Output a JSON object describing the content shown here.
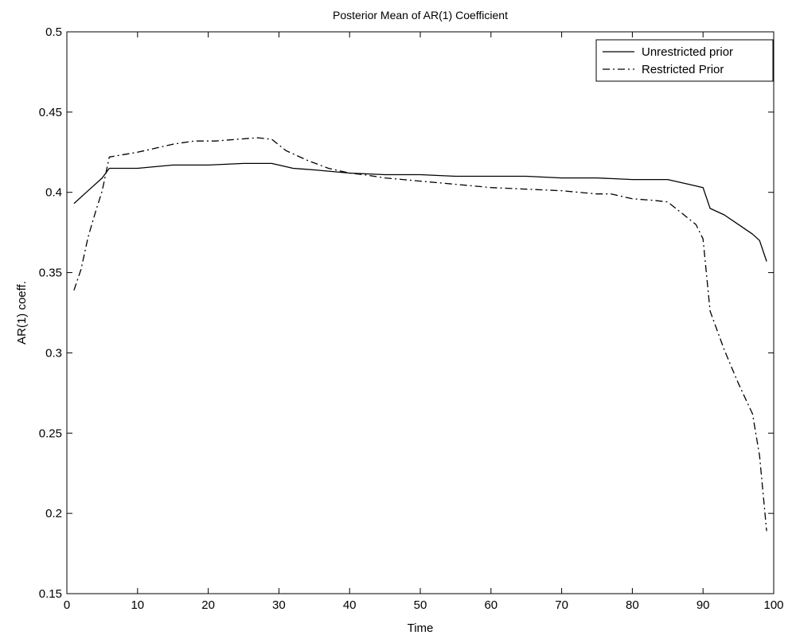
{
  "chart_data": {
    "type": "line",
    "title": "Posterior Mean of AR(1) Coefficient",
    "xlabel": "Time",
    "ylabel": "AR(1) coeff.",
    "xlim": [
      0,
      100
    ],
    "ylim": [
      0.15,
      0.5
    ],
    "xticks": [
      0,
      10,
      20,
      30,
      40,
      50,
      60,
      70,
      80,
      90,
      100
    ],
    "xtick_labels": [
      "0",
      "10",
      "20",
      "30",
      "40",
      "50",
      "60",
      "70",
      "80",
      "90",
      "100"
    ],
    "yticks": [
      0.15,
      0.2,
      0.25,
      0.3,
      0.35,
      0.4,
      0.45,
      0.5
    ],
    "ytick_labels": [
      "0.15",
      "0.2",
      "0.25",
      "0.3",
      "0.35",
      "0.4",
      "0.45",
      "0.5"
    ],
    "grid": false,
    "legend_position": "top-right",
    "series": [
      {
        "name": "Unrestricted prior",
        "style": "solid",
        "color": "#000000",
        "x": [
          1,
          3,
          5,
          6,
          10,
          15,
          20,
          25,
          29,
          32,
          35,
          40,
          45,
          50,
          55,
          60,
          65,
          70,
          75,
          80,
          85,
          88,
          90,
          91,
          93,
          95,
          97,
          98,
          99
        ],
        "y": [
          0.393,
          0.401,
          0.409,
          0.415,
          0.415,
          0.417,
          0.417,
          0.418,
          0.418,
          0.415,
          0.414,
          0.412,
          0.411,
          0.411,
          0.41,
          0.41,
          0.41,
          0.409,
          0.409,
          0.408,
          0.408,
          0.405,
          0.403,
          0.39,
          0.386,
          0.38,
          0.374,
          0.37,
          0.357
        ]
      },
      {
        "name": "Restricted Prior",
        "style": "dash-dot",
        "color": "#000000",
        "x": [
          1,
          2,
          3,
          4,
          5,
          6,
          10,
          12,
          15,
          18,
          21,
          24,
          27,
          29,
          31,
          34,
          37,
          40,
          42,
          45,
          50,
          55,
          60,
          65,
          70,
          75,
          77,
          80,
          83,
          85,
          87,
          89,
          90,
          91,
          93,
          95,
          97,
          98,
          99
        ],
        "y": [
          0.339,
          0.352,
          0.372,
          0.387,
          0.401,
          0.422,
          0.425,
          0.427,
          0.43,
          0.432,
          0.432,
          0.433,
          0.434,
          0.433,
          0.426,
          0.42,
          0.415,
          0.412,
          0.411,
          0.409,
          0.407,
          0.405,
          0.403,
          0.402,
          0.401,
          0.399,
          0.399,
          0.396,
          0.395,
          0.394,
          0.387,
          0.38,
          0.371,
          0.326,
          0.302,
          0.281,
          0.262,
          0.236,
          0.189
        ]
      }
    ]
  }
}
